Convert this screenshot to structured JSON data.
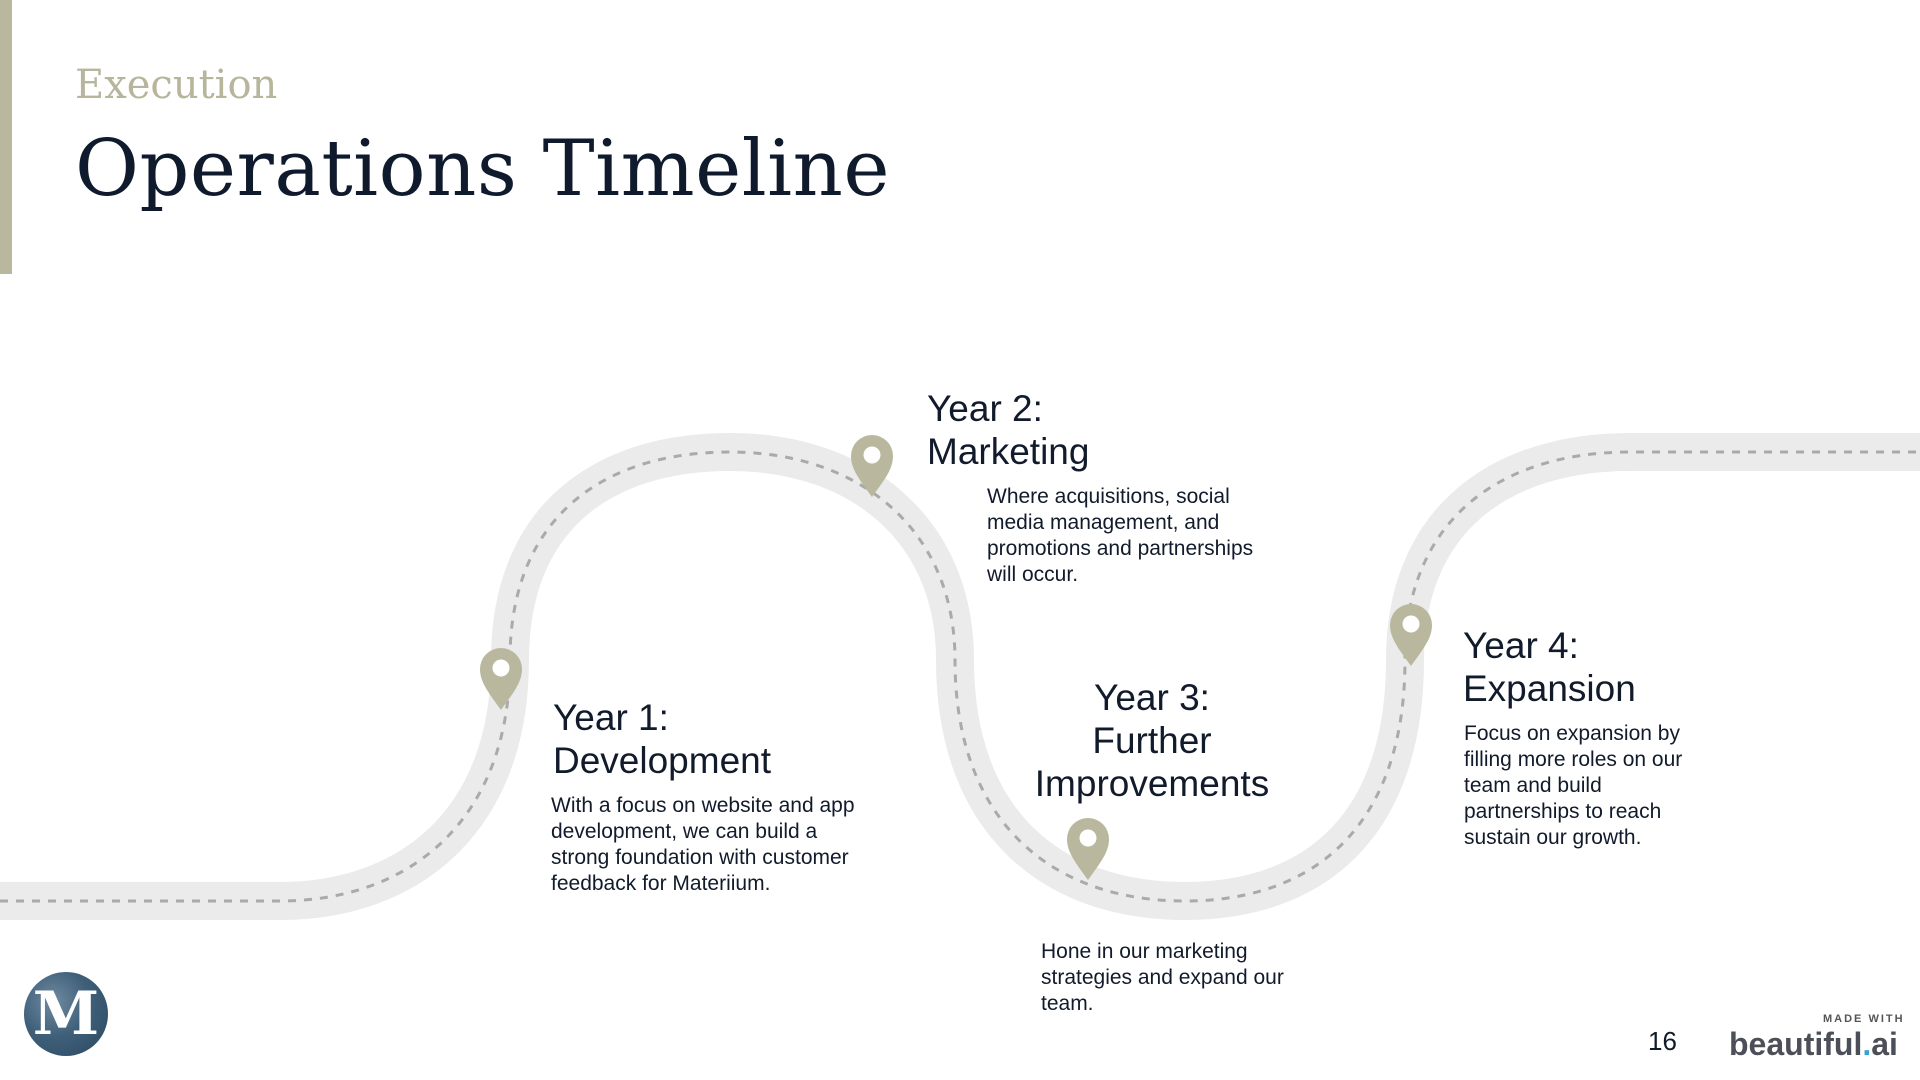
{
  "slide": {
    "eyebrow": "Execution",
    "title": "Operations Timeline"
  },
  "timeline": [
    {
      "title_line1": "Year 1:",
      "title_line2": "Development",
      "description": "With a focus on website and app development, we can build a strong foundation with customer feedback for Materiium."
    },
    {
      "title_line1": "Year 2:",
      "title_line2": "Marketing",
      "description": "Where acquisitions, social media management, and promotions and partnerships will occur."
    },
    {
      "title_line1": "Year 3:",
      "title_line2": "Further",
      "title_line3": "Improvements",
      "description": "Hone in our marketing strategies and expand our team."
    },
    {
      "title_line1": "Year 4:",
      "title_line2": "Expansion",
      "description": "Focus on expansion by filling more roles on our team and build partnerships to reach sustain our growth."
    }
  ],
  "footer": {
    "logo_letter": "M",
    "page_number": "16",
    "made_with": "MADE WITH",
    "brand_name": "beautiful",
    "brand_dot": ".",
    "brand_suffix": "ai"
  },
  "colors": {
    "accent": "#b9b89f",
    "road": "#ebebeb",
    "road_dash": "#aaaaaa",
    "title_text": "#0f1b2d"
  },
  "icons": {
    "marker": "map-pin-icon"
  }
}
